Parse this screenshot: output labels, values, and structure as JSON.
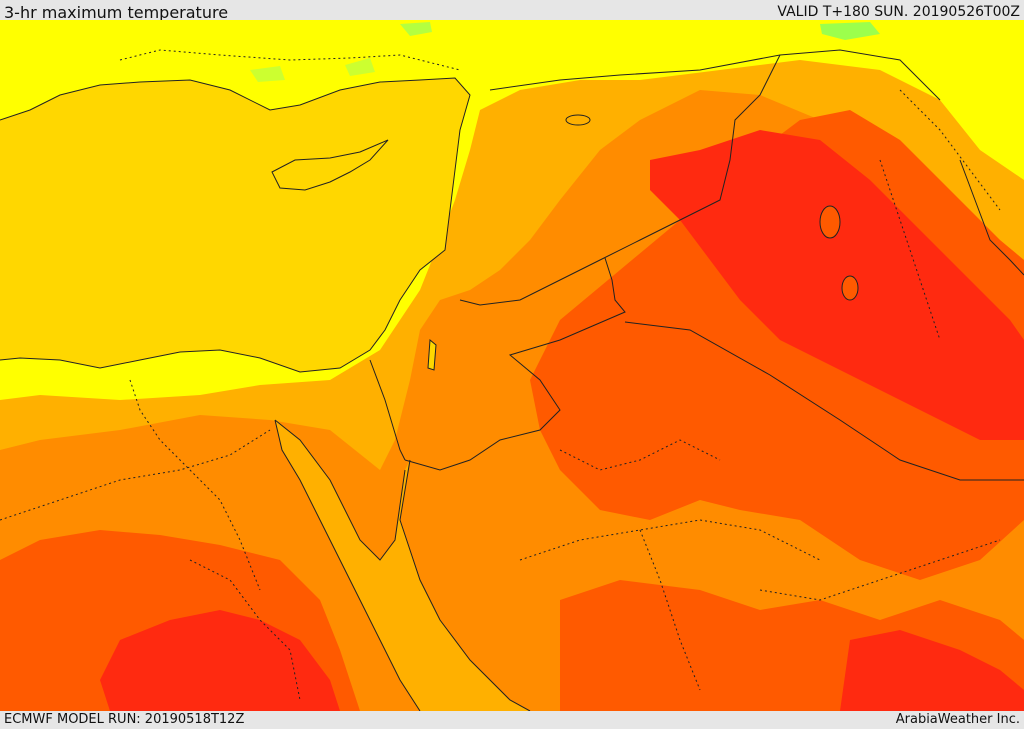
{
  "header": {
    "title": "3-hr maximum temperature",
    "valid": "VALID T+180 SUN. 20190526T00Z"
  },
  "footer": {
    "run": "ECMWF MODEL RUN: 20190518T12Z",
    "credit": "ArabiaWeather Inc."
  },
  "colors": {
    "sea": "#ffd700",
    "light_yellow": "#ffff00",
    "green": "#9cff4c",
    "orange_yellow": "#ffb000",
    "orange": "#ff8c00",
    "red_orange": "#ff5a00",
    "red": "#ff2a10",
    "lines": "#222222"
  }
}
